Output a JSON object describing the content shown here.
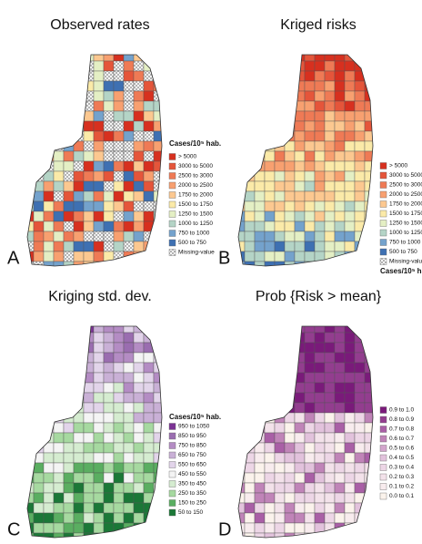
{
  "panels": [
    {
      "letter": "A",
      "title": "Observed rates",
      "legend": {
        "title": "Cases/10⁵ hab.",
        "items": [
          {
            "label": "> 5000",
            "color": "#d7301f"
          },
          {
            "label": "3000 to 5000",
            "color": "#e5553a"
          },
          {
            "label": "2500 to 3000",
            "color": "#ef7a55"
          },
          {
            "label": "2000 to 2500",
            "color": "#f8a070"
          },
          {
            "label": "1750 to 2000",
            "color": "#fcc890"
          },
          {
            "label": "1500 to 1750",
            "color": "#fbeaa8"
          },
          {
            "label": "1250 to 1500",
            "color": "#e4efc4"
          },
          {
            "label": "1000 to 1250",
            "color": "#b4d4c6"
          },
          {
            "label": "750 to 1000",
            "color": "#74a2cc"
          },
          {
            "label": "500 to 750",
            "color": "#3e70b2"
          },
          {
            "label": "Missing-value",
            "color": "hatch"
          }
        ]
      }
    },
    {
      "letter": "B",
      "title": "Kriged risks",
      "legend": {
        "title": "Cases/10⁵ hab.",
        "items": [
          {
            "label": "> 5000",
            "color": "#d7301f"
          },
          {
            "label": "3000 to 5000",
            "color": "#e5553a"
          },
          {
            "label": "2500 to 3000",
            "color": "#ef7a55"
          },
          {
            "label": "2000 to 2500",
            "color": "#f8a070"
          },
          {
            "label": "1750 to 2000",
            "color": "#fcc890"
          },
          {
            "label": "1500 to 1750",
            "color": "#fbeaa8"
          },
          {
            "label": "1250 to 1500",
            "color": "#e4efc4"
          },
          {
            "label": "1000 to 1250",
            "color": "#b4d4c6"
          },
          {
            "label": "750 to 1000",
            "color": "#74a2cc"
          },
          {
            "label": "500 to 750",
            "color": "#3e70b2"
          },
          {
            "label": "Missing-value",
            "color": "hatch"
          }
        ]
      }
    },
    {
      "letter": "C",
      "title": "Kriging std. dev.",
      "legend": {
        "title": "Cases/10⁵ hab.",
        "items": [
          {
            "label": "950 to 1050",
            "color": "#7b3294"
          },
          {
            "label": "850 to 950",
            "color": "#9a6db0"
          },
          {
            "label": "750 to 850",
            "color": "#b48cc4"
          },
          {
            "label": "650 to 750",
            "color": "#c9b0d6"
          },
          {
            "label": "550 to 650",
            "color": "#e2d4ea"
          },
          {
            "label": "450 to 550",
            "color": "#f4f4f4"
          },
          {
            "label": "350 to 450",
            "color": "#d5ecd0"
          },
          {
            "label": "250 to 350",
            "color": "#a6d9a0"
          },
          {
            "label": "150 to 250",
            "color": "#5aae61"
          },
          {
            "label": "50 to 150",
            "color": "#1b7837"
          }
        ]
      }
    },
    {
      "letter": "D",
      "title": "Prob {Risk > mean}",
      "legend": {
        "items": [
          {
            "label": "0.9 to 1.0",
            "color": "#7a1a7a"
          },
          {
            "label": "0.8 to 0.9",
            "color": "#933d8f"
          },
          {
            "label": "0.7 to 0.8",
            "color": "#a95fa6"
          },
          {
            "label": "0.6 to 0.7",
            "color": "#c084b8"
          },
          {
            "label": "0.5 to 0.6",
            "color": "#d3a5cc"
          },
          {
            "label": "0.4 to 0.5",
            "color": "#e2c2dc"
          },
          {
            "label": "0.3 to 0.4",
            "color": "#edd6e6"
          },
          {
            "label": "0.2 to 0.3",
            "color": "#f3e2ea"
          },
          {
            "label": "0.1 to 0.2",
            "color": "#f8ecee"
          },
          {
            "label": "0.0 to 0.1",
            "color": "#fbf3ec"
          }
        ]
      }
    }
  ]
}
